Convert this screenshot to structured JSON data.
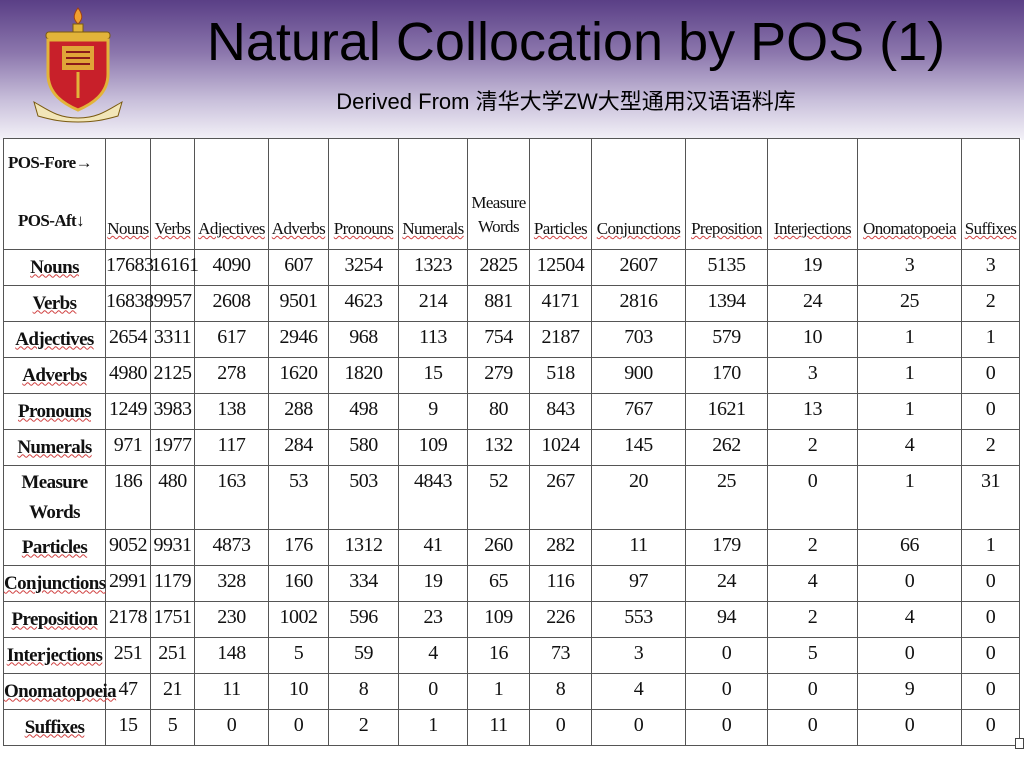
{
  "title": "Natural Collocation by POS (1)",
  "subtitle": "Derived From 清华大学ZW大型通用汉语语料库",
  "table": {
    "corner_fore": "POS-Fore→",
    "corner_aft": "POS-Aft↓",
    "columns": [
      "Nouns",
      "Verbs",
      "Adjectives",
      "Adverbs",
      "Pronouns",
      "Numerals",
      "Measure Words",
      "Particles",
      "Conjunctions",
      "Preposition",
      "Interjections",
      "Onomatopoeia",
      "Suffixes"
    ],
    "rows": [
      {
        "label": "Nouns",
        "values": [
          "17683",
          "16161",
          "4090",
          "607",
          "3254",
          "1323",
          "2825",
          "12504",
          "2607",
          "5135",
          "19",
          "3",
          "3"
        ]
      },
      {
        "label": "Verbs",
        "values": [
          "16838",
          "9957",
          "2608",
          "9501",
          "4623",
          "214",
          "881",
          "4171",
          "2816",
          "1394",
          "24",
          "25",
          "2"
        ]
      },
      {
        "label": "Adjectives",
        "values": [
          "2654",
          "3311",
          "617",
          "2946",
          "968",
          "113",
          "754",
          "2187",
          "703",
          "579",
          "10",
          "1",
          "1"
        ]
      },
      {
        "label": "Adverbs",
        "values": [
          "4980",
          "2125",
          "278",
          "1620",
          "1820",
          "15",
          "279",
          "518",
          "900",
          "170",
          "3",
          "1",
          "0"
        ]
      },
      {
        "label": "Pronouns",
        "values": [
          "1249",
          "3983",
          "138",
          "288",
          "498",
          "9",
          "80",
          "843",
          "767",
          "1621",
          "13",
          "1",
          "0"
        ]
      },
      {
        "label": "Numerals",
        "values": [
          "971",
          "1977",
          "117",
          "284",
          "580",
          "109",
          "132",
          "1024",
          "145",
          "262",
          "2",
          "4",
          "2"
        ]
      },
      {
        "label": "Measure Words",
        "values": [
          "186",
          "480",
          "163",
          "53",
          "503",
          "4843",
          "52",
          "267",
          "20",
          "25",
          "0",
          "1",
          "31"
        ]
      },
      {
        "label": "Particles",
        "values": [
          "9052",
          "9931",
          "4873",
          "176",
          "1312",
          "41",
          "260",
          "282",
          "11",
          "179",
          "2",
          "66",
          "1"
        ]
      },
      {
        "label": "Conjunctions",
        "values": [
          "2991",
          "1179",
          "328",
          "160",
          "334",
          "19",
          "65",
          "116",
          "97",
          "24",
          "4",
          "0",
          "0"
        ]
      },
      {
        "label": "Preposition",
        "values": [
          "2178",
          "1751",
          "230",
          "1002",
          "596",
          "23",
          "109",
          "226",
          "553",
          "94",
          "2",
          "4",
          "0"
        ]
      },
      {
        "label": "Interjections",
        "values": [
          "251",
          "251",
          "148",
          "5",
          "59",
          "4",
          "16",
          "73",
          "3",
          "0",
          "5",
          "0",
          "0"
        ]
      },
      {
        "label": "Onomatopoeia",
        "values": [
          "47",
          "21",
          "11",
          "10",
          "8",
          "0",
          "1",
          "8",
          "4",
          "0",
          "0",
          "9",
          "0"
        ]
      },
      {
        "label": "Suffixes",
        "values": [
          "15",
          "5",
          "0",
          "0",
          "2",
          "1",
          "11",
          "0",
          "0",
          "0",
          "0",
          "0",
          "0"
        ]
      }
    ]
  },
  "colors": {
    "header_top": "#5a3f86",
    "crest_red": "#c8202a",
    "crest_gold": "#e2b43a"
  }
}
